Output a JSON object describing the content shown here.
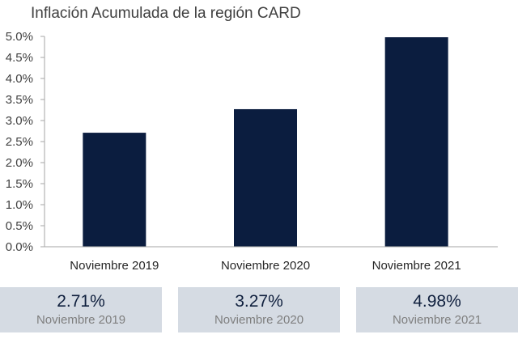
{
  "chart_data": {
    "type": "bar",
    "title": "Inflación Acumulada de la región CARD",
    "categories": [
      "Noviembre 2019",
      "Noviembre 2020",
      "Noviembre 2021"
    ],
    "values": [
      2.71,
      3.27,
      4.98
    ],
    "unit": "%",
    "ylim": [
      0,
      5.0
    ],
    "yticks": [
      "0.0%",
      "0.5%",
      "1.0%",
      "1.5%",
      "2.0%",
      "2.5%",
      "3.0%",
      "3.5%",
      "4.0%",
      "4.5%",
      "5.0%"
    ],
    "grid": false,
    "bar_color": "#0b1d3f"
  },
  "cards": [
    {
      "value": "2.71%",
      "label": "Noviembre 2019"
    },
    {
      "value": "3.27%",
      "label": "Noviembre 2020"
    },
    {
      "value": "4.98%",
      "label": "Noviembre 2021"
    }
  ],
  "colors": {
    "bar": "#0b1d3f",
    "card_bg": "#d5dbe3",
    "card_value": "#0f1f3d",
    "card_label": "#7f7f7f"
  }
}
